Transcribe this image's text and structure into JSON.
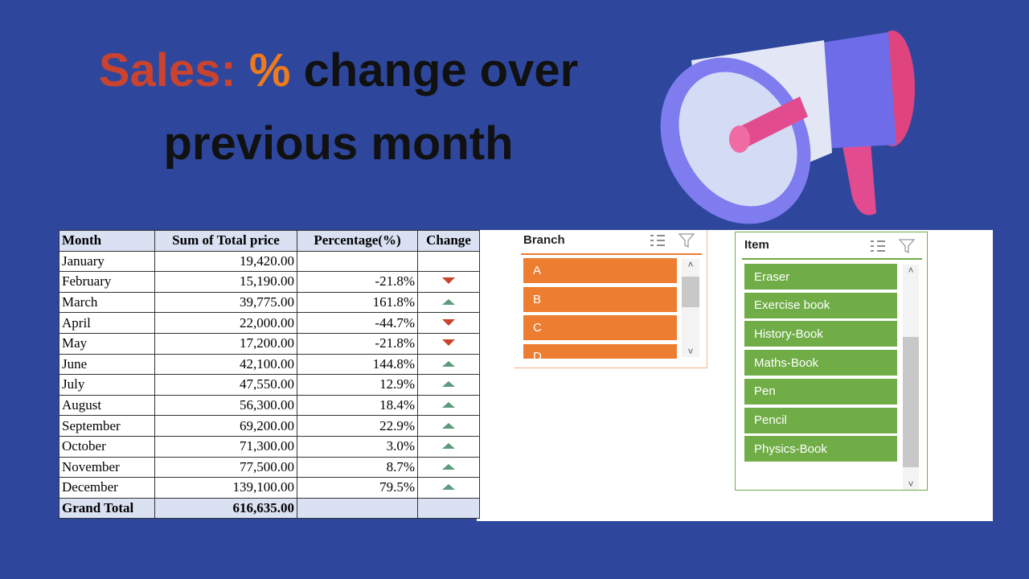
{
  "title": {
    "part1": "Sales:",
    "part2": "%",
    "part3": "change over previous month"
  },
  "table": {
    "headers": [
      "Month",
      "Sum of Total price",
      "Percentage(%)",
      "Change"
    ],
    "rows": [
      [
        "January",
        "19,420.00",
        null
      ],
      [
        "February",
        "15,190.00",
        "-21.8%"
      ],
      [
        "March",
        "39,775.00",
        "161.8%"
      ],
      [
        "April",
        "22,000.00",
        "-44.7%"
      ],
      [
        "May",
        "17,200.00",
        "-21.8%"
      ],
      [
        "June",
        "42,100.00",
        "144.8%"
      ],
      [
        "July",
        "47,550.00",
        "12.9%"
      ],
      [
        "August",
        "56,300.00",
        "18.4%"
      ],
      [
        "September",
        "69,200.00",
        "22.9%"
      ],
      [
        "October",
        "71,300.00",
        "3.0%"
      ],
      [
        "November",
        "77,500.00",
        "8.7%"
      ],
      [
        "December",
        "139,100.00",
        "79.5%"
      ]
    ],
    "total": [
      "Grand Total",
      "616,635.00"
    ]
  },
  "slicers": [
    {
      "title": "Branch",
      "items": [
        "A",
        "B",
        "C",
        "D"
      ]
    },
    {
      "title": "Item",
      "items": [
        "Eraser",
        "Exercise book",
        "History-Book",
        "Maths-Book",
        "Pen",
        "Pencil",
        "Physics-Book"
      ]
    }
  ]
}
